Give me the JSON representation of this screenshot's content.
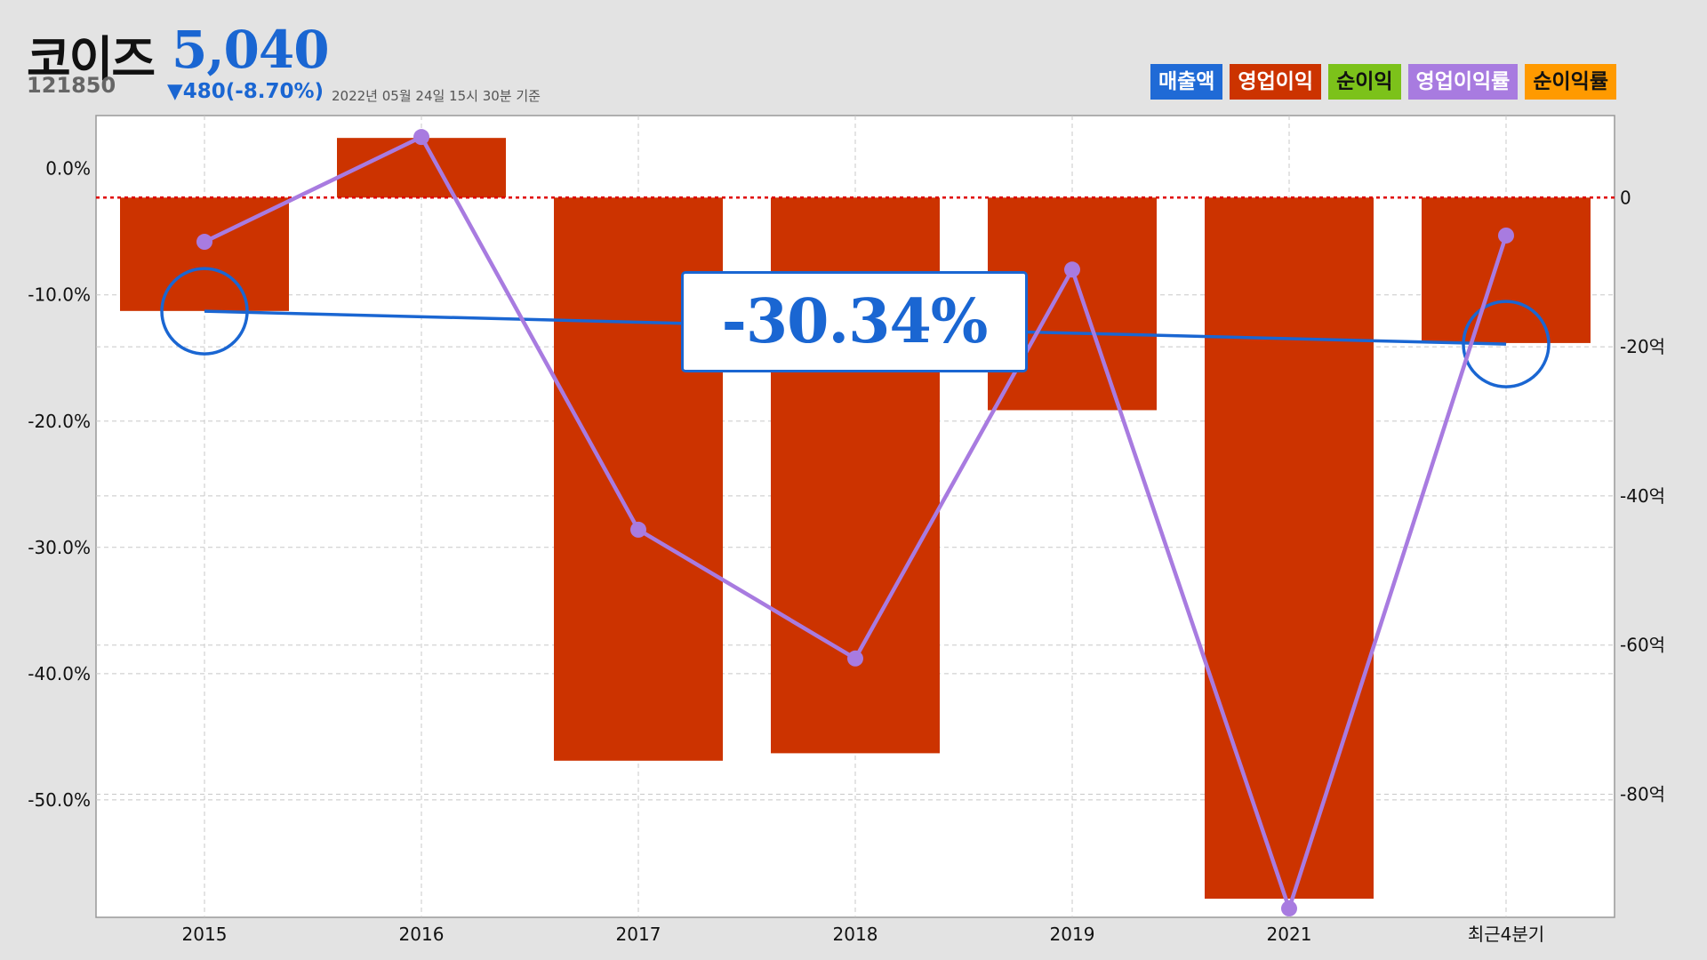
{
  "stock": {
    "name": "코이즈",
    "price": "5,040",
    "code": "121850",
    "change": "▼480(-8.70%)",
    "timestamp": "2022년 05월 24일 15시 30분 기준"
  },
  "legend": [
    {
      "label": "매출액",
      "color": "#1f6ad6",
      "text_dark": false
    },
    {
      "label": "영업이익",
      "color": "#cc3300",
      "text_dark": false
    },
    {
      "label": "순이익",
      "color": "#7cc21a",
      "text_dark": true
    },
    {
      "label": "영업이익률",
      "color": "#a87be0",
      "text_dark": false
    },
    {
      "label": "순이익률",
      "color": "#ff9a00",
      "text_dark": true
    }
  ],
  "callout": "-30.34%",
  "chart_data": {
    "type": "bar",
    "categories": [
      "2015",
      "2016",
      "2017",
      "2018",
      "2019",
      "2021",
      "최근4분기"
    ],
    "grid": true,
    "y_left": {
      "ticks": [
        "0.0%",
        "-10.0%",
        "-20.0%",
        "-30.0%",
        "-40.0%",
        "-50.0%"
      ],
      "tick_values": [
        0,
        -10,
        -20,
        -30,
        -40,
        -50
      ],
      "range": [
        4.2,
        -59.3
      ]
    },
    "y_right": {
      "ticks": [
        "0",
        "-20억",
        "-40억",
        "-60억",
        "-80억"
      ],
      "tick_values": [
        0,
        -20,
        -40,
        -60,
        -80
      ],
      "range": [
        11,
        -96.5
      ]
    },
    "series": [
      {
        "name": "영업이익",
        "type": "bar",
        "axis": "right",
        "color": "#cc3300",
        "values": [
          -15.2,
          8,
          -75.5,
          -74.5,
          -28.5,
          -94,
          -19.5
        ]
      },
      {
        "name": "영업이익률",
        "type": "line",
        "axis": "left",
        "color": "#a87be0",
        "values": [
          -5.8,
          2.5,
          -28.6,
          -38.8,
          -8,
          -58.6,
          -5.3
        ]
      }
    ],
    "trend": {
      "axis": "left",
      "color": "#1a66d2",
      "start_value": -11.3,
      "end_value": -13.9,
      "label": "-30.34%"
    },
    "zero_line_color": "#e00000"
  }
}
